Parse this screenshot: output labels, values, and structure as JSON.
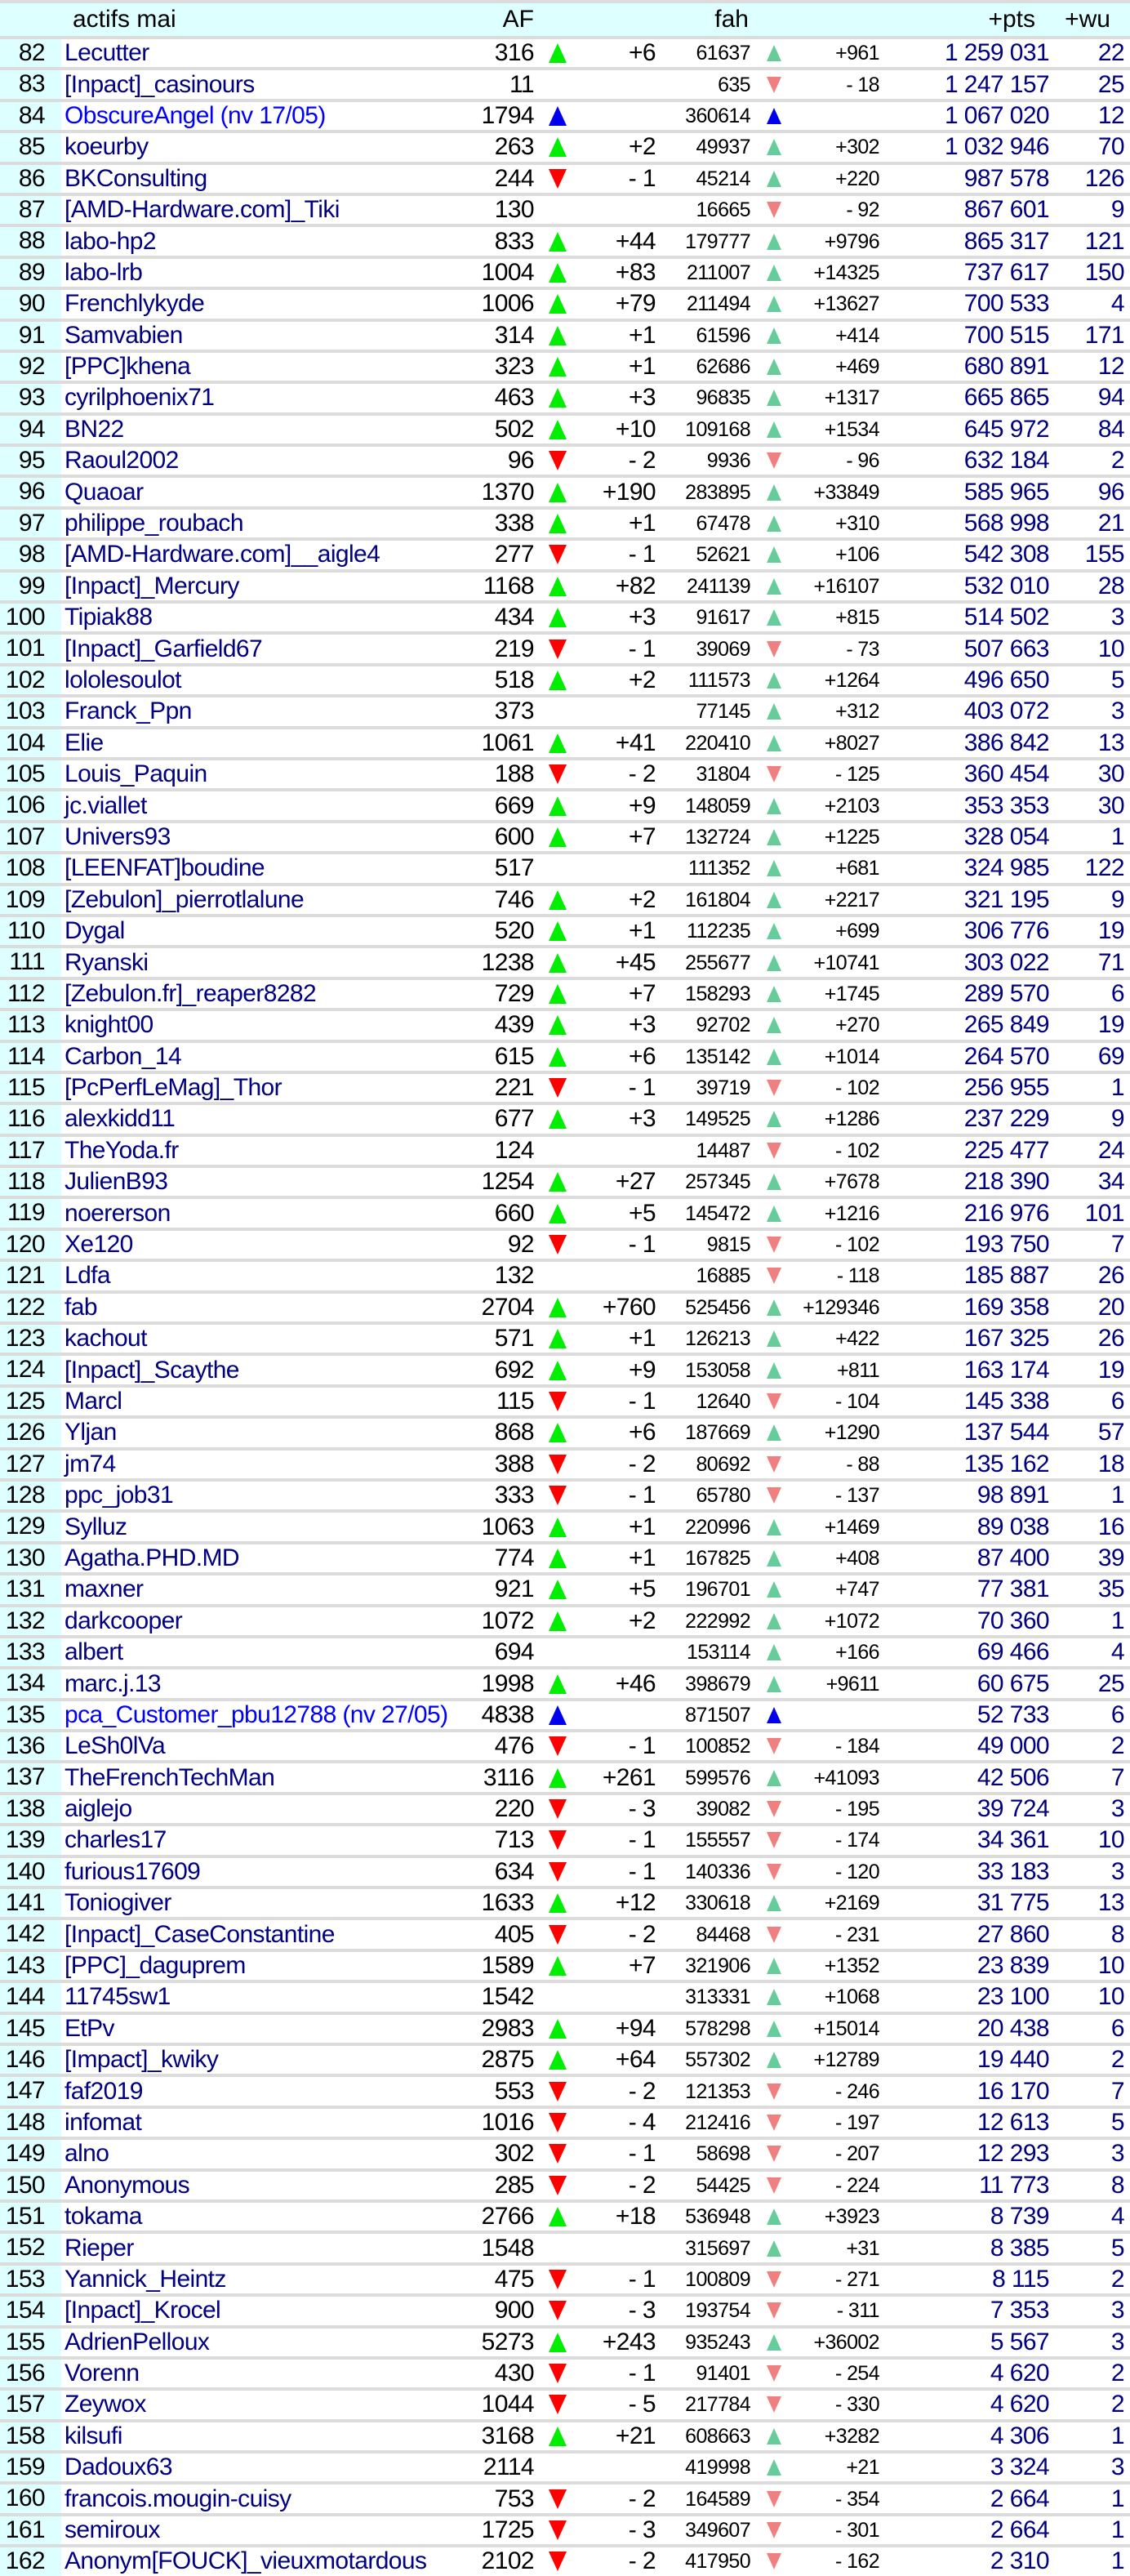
{
  "header": {
    "rank": "",
    "name": "actifs mai",
    "af": "AF",
    "fah": "fah",
    "pts": "+pts",
    "wu": "+wu"
  },
  "colors": {
    "rank_bg": "#ddffff",
    "header_bg": "#ddffff",
    "name": "#000080",
    "new_name": "#0000ff",
    "af_up": "#00ee00",
    "af_down": "#ff0000",
    "new_marker": "#0000ee",
    "fah_up": "#66cc99",
    "fah_down": "#f08080"
  },
  "rows": [
    [
      "82",
      "Lecutter",
      "316",
      "up",
      "+6",
      "61637",
      "up",
      "+961",
      "1 259 031",
      "22"
    ],
    [
      "83",
      "[Inpact]_casinours",
      "11",
      "",
      "",
      "635",
      "down",
      "- 18",
      "1 247 157",
      "25"
    ],
    [
      "84",
      "ObscureAngel (nv 17/05)",
      "1794",
      "new",
      "",
      "360614",
      "new",
      "",
      "1 067 020",
      "12"
    ],
    [
      "85",
      "koeurby",
      "263",
      "up",
      "+2",
      "49937",
      "up",
      "+302",
      "1 032 946",
      "70"
    ],
    [
      "86",
      "BKConsulting",
      "244",
      "down",
      "- 1",
      "45214",
      "up",
      "+220",
      "987 578",
      "126"
    ],
    [
      "87",
      "[AMD-Hardware.com]_Tiki",
      "130",
      "",
      "",
      "16665",
      "down",
      "- 92",
      "867 601",
      "9"
    ],
    [
      "88",
      "labo-hp2",
      "833",
      "up",
      "+44",
      "179777",
      "up",
      "+9796",
      "865 317",
      "121"
    ],
    [
      "89",
      "labo-lrb",
      "1004",
      "up",
      "+83",
      "211007",
      "up",
      "+14325",
      "737 617",
      "150"
    ],
    [
      "90",
      "Frenchlykyde",
      "1006",
      "up",
      "+79",
      "211494",
      "up",
      "+13627",
      "700 533",
      "4"
    ],
    [
      "91",
      "Samvabien",
      "314",
      "up",
      "+1",
      "61596",
      "up",
      "+414",
      "700 515",
      "171"
    ],
    [
      "92",
      "[PPC]khena",
      "323",
      "up",
      "+1",
      "62686",
      "up",
      "+469",
      "680 891",
      "12"
    ],
    [
      "93",
      "cyrilphoenix71",
      "463",
      "up",
      "+3",
      "96835",
      "up",
      "+1317",
      "665 865",
      "94"
    ],
    [
      "94",
      "BN22",
      "502",
      "up",
      "+10",
      "109168",
      "up",
      "+1534",
      "645 972",
      "84"
    ],
    [
      "95",
      "Raoul2002",
      "96",
      "down",
      "- 2",
      "9936",
      "down",
      "- 96",
      "632 184",
      "2"
    ],
    [
      "96",
      "Quaoar",
      "1370",
      "up",
      "+190",
      "283895",
      "up",
      "+33849",
      "585 965",
      "96"
    ],
    [
      "97",
      "philippe_roubach",
      "338",
      "up",
      "+1",
      "67478",
      "up",
      "+310",
      "568 998",
      "21"
    ],
    [
      "98",
      "[AMD-Hardware.com]__aigle4",
      "277",
      "down",
      "- 1",
      "52621",
      "up",
      "+106",
      "542 308",
      "155"
    ],
    [
      "99",
      "[Inpact]_Mercury",
      "1168",
      "up",
      "+82",
      "241139",
      "up",
      "+16107",
      "532 010",
      "28"
    ],
    [
      "100",
      "Tipiak88",
      "434",
      "up",
      "+3",
      "91617",
      "up",
      "+815",
      "514 502",
      "3"
    ],
    [
      "101",
      "[Inpact]_Garfield67",
      "219",
      "down",
      "- 1",
      "39069",
      "down",
      "- 73",
      "507 663",
      "10"
    ],
    [
      "102",
      "lololesoulot",
      "518",
      "up",
      "+2",
      "111573",
      "up",
      "+1264",
      "496 650",
      "5"
    ],
    [
      "103",
      "Franck_Ppn",
      "373",
      "",
      "",
      "77145",
      "up",
      "+312",
      "403 072",
      "3"
    ],
    [
      "104",
      "Elie",
      "1061",
      "up",
      "+41",
      "220410",
      "up",
      "+8027",
      "386 842",
      "13"
    ],
    [
      "105",
      "Louis_Paquin",
      "188",
      "down",
      "- 2",
      "31804",
      "down",
      "- 125",
      "360 454",
      "30"
    ],
    [
      "106",
      "jc.viallet",
      "669",
      "up",
      "+9",
      "148059",
      "up",
      "+2103",
      "353 353",
      "30"
    ],
    [
      "107",
      "Univers93",
      "600",
      "up",
      "+7",
      "132724",
      "up",
      "+1225",
      "328 054",
      "1"
    ],
    [
      "108",
      "[LEENFAT]boudine",
      "517",
      "",
      "",
      "111352",
      "up",
      "+681",
      "324 985",
      "122"
    ],
    [
      "109",
      "[Zebulon]_pierrotlalune",
      "746",
      "up",
      "+2",
      "161804",
      "up",
      "+2217",
      "321 195",
      "9"
    ],
    [
      "110",
      "Dygal",
      "520",
      "up",
      "+1",
      "112235",
      "up",
      "+699",
      "306 776",
      "19"
    ],
    [
      "111",
      "Ryanski",
      "1238",
      "up",
      "+45",
      "255677",
      "up",
      "+10741",
      "303 022",
      "71"
    ],
    [
      "112",
      "[Zebulon.fr]_reaper8282",
      "729",
      "up",
      "+7",
      "158293",
      "up",
      "+1745",
      "289 570",
      "6"
    ],
    [
      "113",
      "knight00",
      "439",
      "up",
      "+3",
      "92702",
      "up",
      "+270",
      "265 849",
      "19"
    ],
    [
      "114",
      "Carbon_14",
      "615",
      "up",
      "+6",
      "135142",
      "up",
      "+1014",
      "264 570",
      "69"
    ],
    [
      "115",
      "[PcPerfLeMag]_Thor",
      "221",
      "down",
      "- 1",
      "39719",
      "down",
      "- 102",
      "256 955",
      "1"
    ],
    [
      "116",
      "alexkidd11",
      "677",
      "up",
      "+3",
      "149525",
      "up",
      "+1286",
      "237 229",
      "9"
    ],
    [
      "117",
      "TheYoda.fr",
      "124",
      "",
      "",
      "14487",
      "down",
      "- 102",
      "225 477",
      "24"
    ],
    [
      "118",
      "JulienB93",
      "1254",
      "up",
      "+27",
      "257345",
      "up",
      "+7678",
      "218 390",
      "34"
    ],
    [
      "119",
      "noererson",
      "660",
      "up",
      "+5",
      "145472",
      "up",
      "+1216",
      "216 976",
      "101"
    ],
    [
      "120",
      "Xe120",
      "92",
      "down",
      "- 1",
      "9815",
      "down",
      "- 102",
      "193 750",
      "7"
    ],
    [
      "121",
      "Ldfa",
      "132",
      "",
      "",
      "16885",
      "down",
      "- 118",
      "185 887",
      "26"
    ],
    [
      "122",
      "fab",
      "2704",
      "up",
      "+760",
      "525456",
      "up",
      "+129346",
      "169 358",
      "20"
    ],
    [
      "123",
      "kachout",
      "571",
      "up",
      "+1",
      "126213",
      "up",
      "+422",
      "167 325",
      "26"
    ],
    [
      "124",
      "[Inpact]_Scaythe",
      "692",
      "up",
      "+9",
      "153058",
      "up",
      "+811",
      "163 174",
      "19"
    ],
    [
      "125",
      "Marcl",
      "115",
      "down",
      "- 1",
      "12640",
      "down",
      "- 104",
      "145 338",
      "6"
    ],
    [
      "126",
      "Yljan",
      "868",
      "up",
      "+6",
      "187669",
      "up",
      "+1290",
      "137 544",
      "57"
    ],
    [
      "127",
      "jm74",
      "388",
      "down",
      "- 2",
      "80692",
      "down",
      "- 88",
      "135 162",
      "18"
    ],
    [
      "128",
      "ppc_job31",
      "333",
      "down",
      "- 1",
      "65780",
      "down",
      "- 137",
      "98 891",
      "1"
    ],
    [
      "129",
      "Sylluz",
      "1063",
      "up",
      "+1",
      "220996",
      "up",
      "+1469",
      "89 038",
      "16"
    ],
    [
      "130",
      "Agatha.PHD.MD",
      "774",
      "up",
      "+1",
      "167825",
      "up",
      "+408",
      "87 400",
      "39"
    ],
    [
      "131",
      "maxner",
      "921",
      "up",
      "+5",
      "196701",
      "up",
      "+747",
      "77 381",
      "35"
    ],
    [
      "132",
      "darkcooper",
      "1072",
      "up",
      "+2",
      "222992",
      "up",
      "+1072",
      "70 360",
      "1"
    ],
    [
      "133",
      "albert",
      "694",
      "",
      "",
      "153114",
      "up",
      "+166",
      "69 466",
      "4"
    ],
    [
      "134",
      "marc.j.13",
      "1998",
      "up",
      "+46",
      "398679",
      "up",
      "+9611",
      "60 675",
      "25"
    ],
    [
      "135",
      "pca_Customer_pbu12788 (nv 27/05)",
      "4838",
      "new",
      "",
      "871507",
      "new",
      "",
      "52 733",
      "6"
    ],
    [
      "136",
      "LeSh0lVa",
      "476",
      "down",
      "- 1",
      "100852",
      "down",
      "- 184",
      "49 000",
      "2"
    ],
    [
      "137",
      "TheFrenchTechMan",
      "3116",
      "up",
      "+261",
      "599576",
      "up",
      "+41093",
      "42 506",
      "7"
    ],
    [
      "138",
      "aiglejo",
      "220",
      "down",
      "- 3",
      "39082",
      "down",
      "- 195",
      "39 724",
      "3"
    ],
    [
      "139",
      "charles17",
      "713",
      "down",
      "- 1",
      "155557",
      "down",
      "- 174",
      "34 361",
      "10"
    ],
    [
      "140",
      "furious17609",
      "634",
      "down",
      "- 1",
      "140336",
      "down",
      "- 120",
      "33 183",
      "3"
    ],
    [
      "141",
      "Toniogiver",
      "1633",
      "up",
      "+12",
      "330618",
      "up",
      "+2169",
      "31 775",
      "13"
    ],
    [
      "142",
      "[Inpact]_CaseConstantine",
      "405",
      "down",
      "- 2",
      "84468",
      "down",
      "- 231",
      "27 860",
      "8"
    ],
    [
      "143",
      "[PPC]_daguprem",
      "1589",
      "up",
      "+7",
      "321906",
      "up",
      "+1352",
      "23 839",
      "10"
    ],
    [
      "144",
      "11745sw1",
      "1542",
      "",
      "",
      "313331",
      "up",
      "+1068",
      "23 100",
      "10"
    ],
    [
      "145",
      "EtPv",
      "2983",
      "up",
      "+94",
      "578298",
      "up",
      "+15014",
      "20 438",
      "6"
    ],
    [
      "146",
      "[Impact]_kwiky",
      "2875",
      "up",
      "+64",
      "557302",
      "up",
      "+12789",
      "19 440",
      "2"
    ],
    [
      "147",
      "faf2019",
      "553",
      "down",
      "- 2",
      "121353",
      "down",
      "- 246",
      "16 170",
      "7"
    ],
    [
      "148",
      "infomat",
      "1016",
      "down",
      "- 4",
      "212416",
      "down",
      "- 197",
      "12 613",
      "5"
    ],
    [
      "149",
      "alno",
      "302",
      "down",
      "- 1",
      "58698",
      "down",
      "- 207",
      "12 293",
      "3"
    ],
    [
      "150",
      "Anonymous",
      "285",
      "down",
      "- 2",
      "54425",
      "down",
      "- 224",
      "11 773",
      "8"
    ],
    [
      "151",
      "tokama",
      "2766",
      "up",
      "+18",
      "536948",
      "up",
      "+3923",
      "8 739",
      "4"
    ],
    [
      "152",
      "Rieper",
      "1548",
      "",
      "",
      "315697",
      "up",
      "+31",
      "8 385",
      "5"
    ],
    [
      "153",
      "Yannick_Heintz",
      "475",
      "down",
      "- 1",
      "100809",
      "down",
      "- 271",
      "8 115",
      "2"
    ],
    [
      "154",
      "[Inpact]_Krocel",
      "900",
      "down",
      "- 3",
      "193754",
      "down",
      "- 311",
      "7 353",
      "3"
    ],
    [
      "155",
      "AdrienPelloux",
      "5273",
      "up",
      "+243",
      "935243",
      "up",
      "+36002",
      "5 567",
      "3"
    ],
    [
      "156",
      "Vorenn",
      "430",
      "down",
      "- 1",
      "91401",
      "down",
      "- 254",
      "4 620",
      "2"
    ],
    [
      "157",
      "Zeywox",
      "1044",
      "down",
      "- 5",
      "217784",
      "down",
      "- 330",
      "4 620",
      "2"
    ],
    [
      "158",
      "kilsufi",
      "3168",
      "up",
      "+21",
      "608663",
      "up",
      "+3282",
      "4 306",
      "1"
    ],
    [
      "159",
      "Dadoux63",
      "2114",
      "",
      "",
      "419998",
      "up",
      "+21",
      "3 324",
      "3"
    ],
    [
      "160",
      "francois.mougin-cuisy",
      "753",
      "down",
      "- 2",
      "164589",
      "down",
      "- 354",
      "2 664",
      "1"
    ],
    [
      "161",
      "semiroux",
      "1725",
      "down",
      "- 3",
      "349607",
      "down",
      "- 301",
      "2 664",
      "1"
    ],
    [
      "162",
      "Anonym[FOUCK]_vieuxmotardous",
      "2102",
      "down",
      "- 2",
      "417950",
      "down",
      "- 162",
      "2 310",
      "1"
    ]
  ]
}
